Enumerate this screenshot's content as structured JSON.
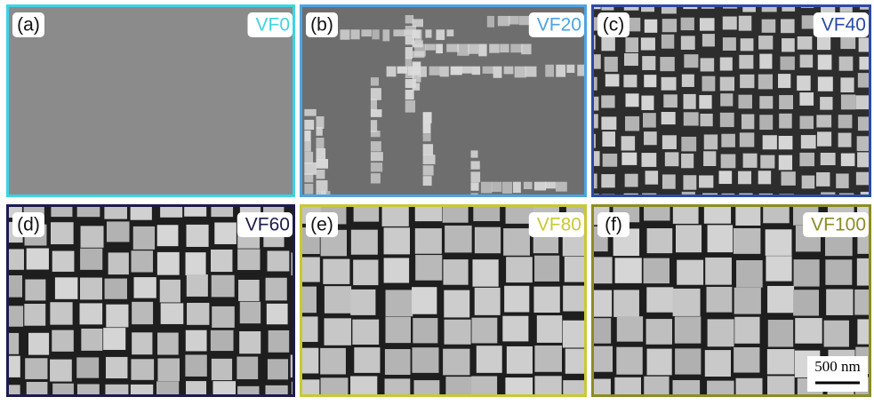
{
  "panels": [
    {
      "label": "(a)",
      "name": "VF0",
      "color": "#3fd3e3"
    },
    {
      "label": "(b)",
      "name": "VF20",
      "color": "#4ea3e3"
    },
    {
      "label": "(c)",
      "name": "VF40",
      "color": "#2b4aa6"
    },
    {
      "label": "(d)",
      "name": "VF60",
      "color": "#1b1b4f"
    },
    {
      "label": "(e)",
      "name": "VF80",
      "color": "#c9c934"
    },
    {
      "label": "(f)",
      "name": "VF100",
      "color": "#8c8c24"
    }
  ],
  "scale_bar": "500 nm"
}
